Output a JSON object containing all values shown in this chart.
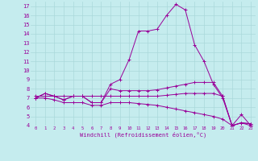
{
  "xlabel": "Windchill (Refroidissement éolien,°C)",
  "bg_color": "#c5ecee",
  "grid_color": "#aad8da",
  "line_color": "#990099",
  "xlim": [
    -0.5,
    23.5
  ],
  "ylim": [
    4,
    17.5
  ],
  "xticks": [
    0,
    1,
    2,
    3,
    4,
    5,
    6,
    7,
    8,
    9,
    10,
    11,
    12,
    13,
    14,
    15,
    16,
    17,
    18,
    19,
    20,
    21,
    22,
    23
  ],
  "yticks": [
    4,
    5,
    6,
    7,
    8,
    9,
    10,
    11,
    12,
    13,
    14,
    15,
    16,
    17
  ],
  "series": [
    {
      "x": [
        0,
        1,
        2,
        3,
        4,
        5,
        6,
        7,
        8,
        9,
        10,
        11,
        12,
        13,
        14,
        15,
        16,
        17,
        18,
        19,
        20,
        21,
        22,
        23
      ],
      "y": [
        7.0,
        7.5,
        7.2,
        6.8,
        7.2,
        7.2,
        6.5,
        6.5,
        8.5,
        9.0,
        11.2,
        14.3,
        14.3,
        14.5,
        16.0,
        17.2,
        16.6,
        12.8,
        11.0,
        8.5,
        7.0,
        4.0,
        5.2,
        4.0
      ]
    },
    {
      "x": [
        0,
        1,
        2,
        3,
        4,
        5,
        6,
        7,
        8,
        9,
        10,
        11,
        12,
        13,
        14,
        15,
        16,
        17,
        18,
        19,
        20,
        21,
        22,
        23
      ],
      "y": [
        7.0,
        7.5,
        7.2,
        6.8,
        7.2,
        7.2,
        6.5,
        6.5,
        8.0,
        7.8,
        7.8,
        7.8,
        7.8,
        7.9,
        8.1,
        8.3,
        8.5,
        8.7,
        8.7,
        8.7,
        7.2,
        4.0,
        4.3,
        4.2
      ]
    },
    {
      "x": [
        0,
        1,
        2,
        3,
        4,
        5,
        6,
        7,
        8,
        9,
        10,
        11,
        12,
        13,
        14,
        15,
        16,
        17,
        18,
        19,
        20,
        21,
        22,
        23
      ],
      "y": [
        7.2,
        7.2,
        7.2,
        7.2,
        7.2,
        7.2,
        7.2,
        7.2,
        7.2,
        7.2,
        7.2,
        7.2,
        7.2,
        7.2,
        7.3,
        7.4,
        7.5,
        7.5,
        7.5,
        7.5,
        7.2,
        4.0,
        4.3,
        4.2
      ]
    },
    {
      "x": [
        0,
        1,
        2,
        3,
        4,
        5,
        6,
        7,
        8,
        9,
        10,
        11,
        12,
        13,
        14,
        15,
        16,
        17,
        18,
        19,
        20,
        21,
        22,
        23
      ],
      "y": [
        7.0,
        7.0,
        6.8,
        6.5,
        6.5,
        6.5,
        6.2,
        6.2,
        6.5,
        6.5,
        6.5,
        6.4,
        6.3,
        6.2,
        6.0,
        5.8,
        5.6,
        5.4,
        5.2,
        5.0,
        4.7,
        4.0,
        4.3,
        4.0
      ]
    }
  ]
}
